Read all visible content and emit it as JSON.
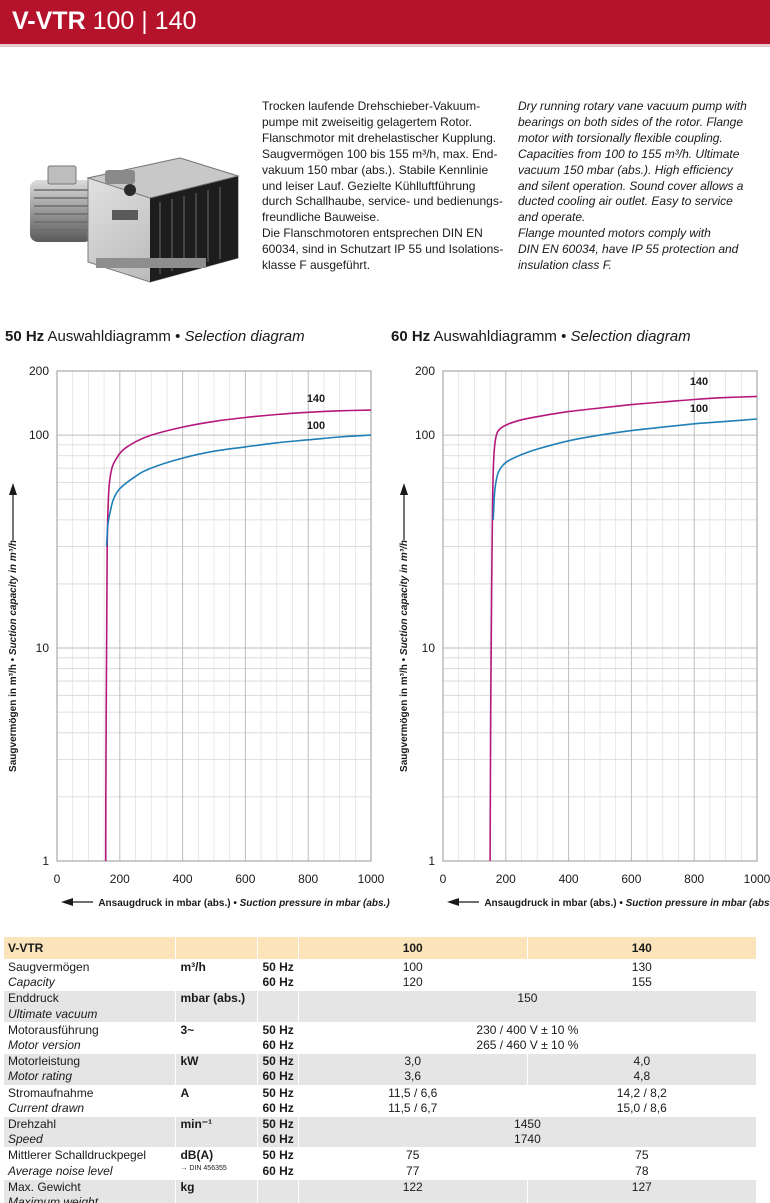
{
  "header": {
    "model": "V-VTR",
    "sizes": "100 | 140",
    "color": "#b5122b"
  },
  "product_image_icon": "rotary-vane-pump-photo",
  "description": {
    "de_lines": [
      "Trocken laufende Drehschieber-Vakuum-",
      "pumpe mit zweiseitig gelagertem Rotor.",
      "Flanschmotor mit drehelastischer Kupplung.",
      "Saugvermögen 100 bis 155 m³/h, max. End-",
      "vakuum 150 mbar (abs.). Stabile Kennlinie",
      "und leiser Lauf. Gezielte Kühlluftführung",
      "durch Schallhaube, service- und bedienungs-",
      "freundliche Bauweise.",
      "Die Flanschmotoren entsprechen DIN EN",
      "60034, sind in Schutzart IP 55 und Isolations-",
      "klasse F ausgeführt."
    ],
    "en_lines": [
      "Dry running rotary vane vacuum pump with",
      "bearings on both sides of the rotor. Flange",
      "motor with torsionally flexible coupling.",
      "Capacities from 100 to 155 m³/h. Ultimate",
      "vacuum 150 mbar (abs.). High efficiency",
      "and silent operation. Sound cover allows a",
      "ducted cooling air outlet. Easy to service",
      "and operate.",
      "Flange mounted motors comply with",
      "DIN EN 60034, have IP 55 protection and",
      "insulation class F."
    ]
  },
  "charts": [
    {
      "freq": "50 Hz",
      "title_de": "Auswahldiagramm •",
      "title_en": "Selection diagram"
    },
    {
      "freq": "60 Hz",
      "title_de": "Auswahldiagramm •",
      "title_en": "Selection diagram"
    }
  ],
  "chart_data": [
    {
      "type": "line",
      "title": "50 Hz Auswahldiagramm • Selection diagram",
      "xlabel_de": "Ansaugdruck in mbar (abs.) •",
      "xlabel_en": "Suction pressure in mbar (abs.)",
      "ylabel_de": "Saugvermögen in m³/h •",
      "ylabel_en": "Suction capacity in m³/h",
      "xlim": [
        0,
        1000
      ],
      "ylim": [
        1,
        200
      ],
      "yscale": "log",
      "grid": true,
      "x_ticks": [
        "0",
        "200",
        "400",
        "600",
        "800",
        "1000"
      ],
      "y_ticks": [
        "1",
        "10",
        "100",
        "200"
      ],
      "series": [
        {
          "name": "140",
          "color": "#b5177a",
          "points": [
            [
              155,
              1
            ],
            [
              156,
              3
            ],
            [
              158,
              10
            ],
            [
              160,
              30
            ],
            [
              165,
              55
            ],
            [
              175,
              70
            ],
            [
              190,
              78
            ],
            [
              210,
              85
            ],
            [
              250,
              93
            ],
            [
              300,
              100
            ],
            [
              400,
              109
            ],
            [
              500,
              116
            ],
            [
              600,
              121
            ],
            [
              700,
              125
            ],
            [
              800,
              128
            ],
            [
              900,
              130
            ],
            [
              1000,
              131
            ]
          ]
        },
        {
          "name": "100",
          "color": "#1f7fb8",
          "points": [
            [
              158,
              30
            ],
            [
              162,
              38
            ],
            [
              170,
              44
            ],
            [
              180,
              50
            ],
            [
              200,
              56
            ],
            [
              250,
              64
            ],
            [
              300,
              70
            ],
            [
              400,
              78
            ],
            [
              500,
              84
            ],
            [
              600,
              88
            ],
            [
              700,
              92
            ],
            [
              800,
              95
            ],
            [
              900,
              98
            ],
            [
              1000,
              100
            ]
          ]
        }
      ]
    },
    {
      "type": "line",
      "title": "60 Hz Auswahldiagramm • Selection diagram",
      "xlabel_de": "Ansaugdruck in mbar (abs.) •",
      "xlabel_en": "Suction pressure in mbar (abs.)",
      "ylabel_de": "Saugvermögen in m³/h •",
      "ylabel_en": "Suction capacity in m³/h",
      "xlim": [
        0,
        1000
      ],
      "ylim": [
        1,
        200
      ],
      "yscale": "log",
      "grid": true,
      "x_ticks": [
        "0",
        "200",
        "400",
        "600",
        "800",
        "1000"
      ],
      "y_ticks": [
        "1",
        "10",
        "100",
        "200"
      ],
      "series": [
        {
          "name": "140",
          "color": "#b5177a",
          "points": [
            [
              150,
              1
            ],
            [
              152,
              5
            ],
            [
              155,
              20
            ],
            [
              158,
              50
            ],
            [
              162,
              80
            ],
            [
              170,
              100
            ],
            [
              185,
              108
            ],
            [
              210,
              113
            ],
            [
              250,
              118
            ],
            [
              300,
              122
            ],
            [
              400,
              129
            ],
            [
              500,
              134
            ],
            [
              600,
              139
            ],
            [
              700,
              143
            ],
            [
              800,
              147
            ],
            [
              900,
              150
            ],
            [
              1000,
              152
            ]
          ]
        },
        {
          "name": "100",
          "color": "#1f7fb8",
          "points": [
            [
              160,
              40
            ],
            [
              165,
              55
            ],
            [
              175,
              66
            ],
            [
              190,
              72
            ],
            [
              210,
              76
            ],
            [
              250,
              81
            ],
            [
              300,
              86
            ],
            [
              400,
              94
            ],
            [
              500,
              100
            ],
            [
              600,
              105
            ],
            [
              700,
              109
            ],
            [
              800,
              113
            ],
            [
              900,
              116
            ],
            [
              1000,
              119
            ]
          ]
        }
      ]
    }
  ],
  "table": {
    "head": {
      "label": "V-VTR",
      "col1": "100",
      "col2": "140"
    },
    "rows": [
      {
        "de": "Saugvermögen",
        "en": "Capacity",
        "unit": "m³/h",
        "note": "",
        "f1": "50 Hz",
        "f2": "60 Hz",
        "a1": "100",
        "a2": "120",
        "b1": "130",
        "b2": "155",
        "merged": false,
        "shade": false
      },
      {
        "de": "Enddruck",
        "en": "Ultimate vacuum",
        "unit": "mbar (abs.)",
        "note": "",
        "f1": "",
        "f2": "",
        "a1": "150",
        "a2": "",
        "b1": "",
        "b2": "",
        "merged": true,
        "shade": true
      },
      {
        "de": "Motorausführung",
        "en": "Motor version",
        "unit": "3~",
        "note": "",
        "f1": "50 Hz",
        "f2": "60 Hz",
        "a1": "230 / 400 V ± 10 %",
        "a2": "265 / 460 V ± 10 %",
        "b1": "",
        "b2": "",
        "merged": true,
        "shade": false
      },
      {
        "de": "Motorleistung",
        "en": "Motor rating",
        "unit": "kW",
        "note": "",
        "f1": "50 Hz",
        "f2": "60 Hz",
        "a1": "3,0",
        "a2": "3,6",
        "b1": "4,0",
        "b2": "4,8",
        "merged": false,
        "shade": true
      },
      {
        "de": "Stromaufnahme",
        "en": "Current drawn",
        "unit": "A",
        "note": "",
        "f1": "50 Hz",
        "f2": "60 Hz",
        "a1": "11,5 / 6,6",
        "a2": "11,5 / 6,7",
        "b1": "14,2 / 8,2",
        "b2": "15,0 / 8,6",
        "merged": false,
        "shade": false
      },
      {
        "de": "Drehzahl",
        "en": "Speed",
        "unit": "min⁻¹",
        "note": "",
        "f1": "50 Hz",
        "f2": "60 Hz",
        "a1": "1450",
        "a2": "1740",
        "b1": "",
        "b2": "",
        "merged": true,
        "shade": true
      },
      {
        "de": "Mittlerer Schalldruckpegel",
        "en": "Average noise level",
        "unit": "dB(A)",
        "note": "→ DIN 456355",
        "f1": "50 Hz",
        "f2": "60 Hz",
        "a1": "75",
        "a2": "77",
        "b1": "75",
        "b2": "78",
        "merged": false,
        "shade": false
      },
      {
        "de": "Max. Gewicht",
        "en": "Maximum weight",
        "unit": "kg",
        "note": "",
        "f1": "",
        "f2": "",
        "a1": "122",
        "a2": "",
        "b1": "127",
        "b2": "",
        "merged": false,
        "shade": true
      }
    ]
  }
}
